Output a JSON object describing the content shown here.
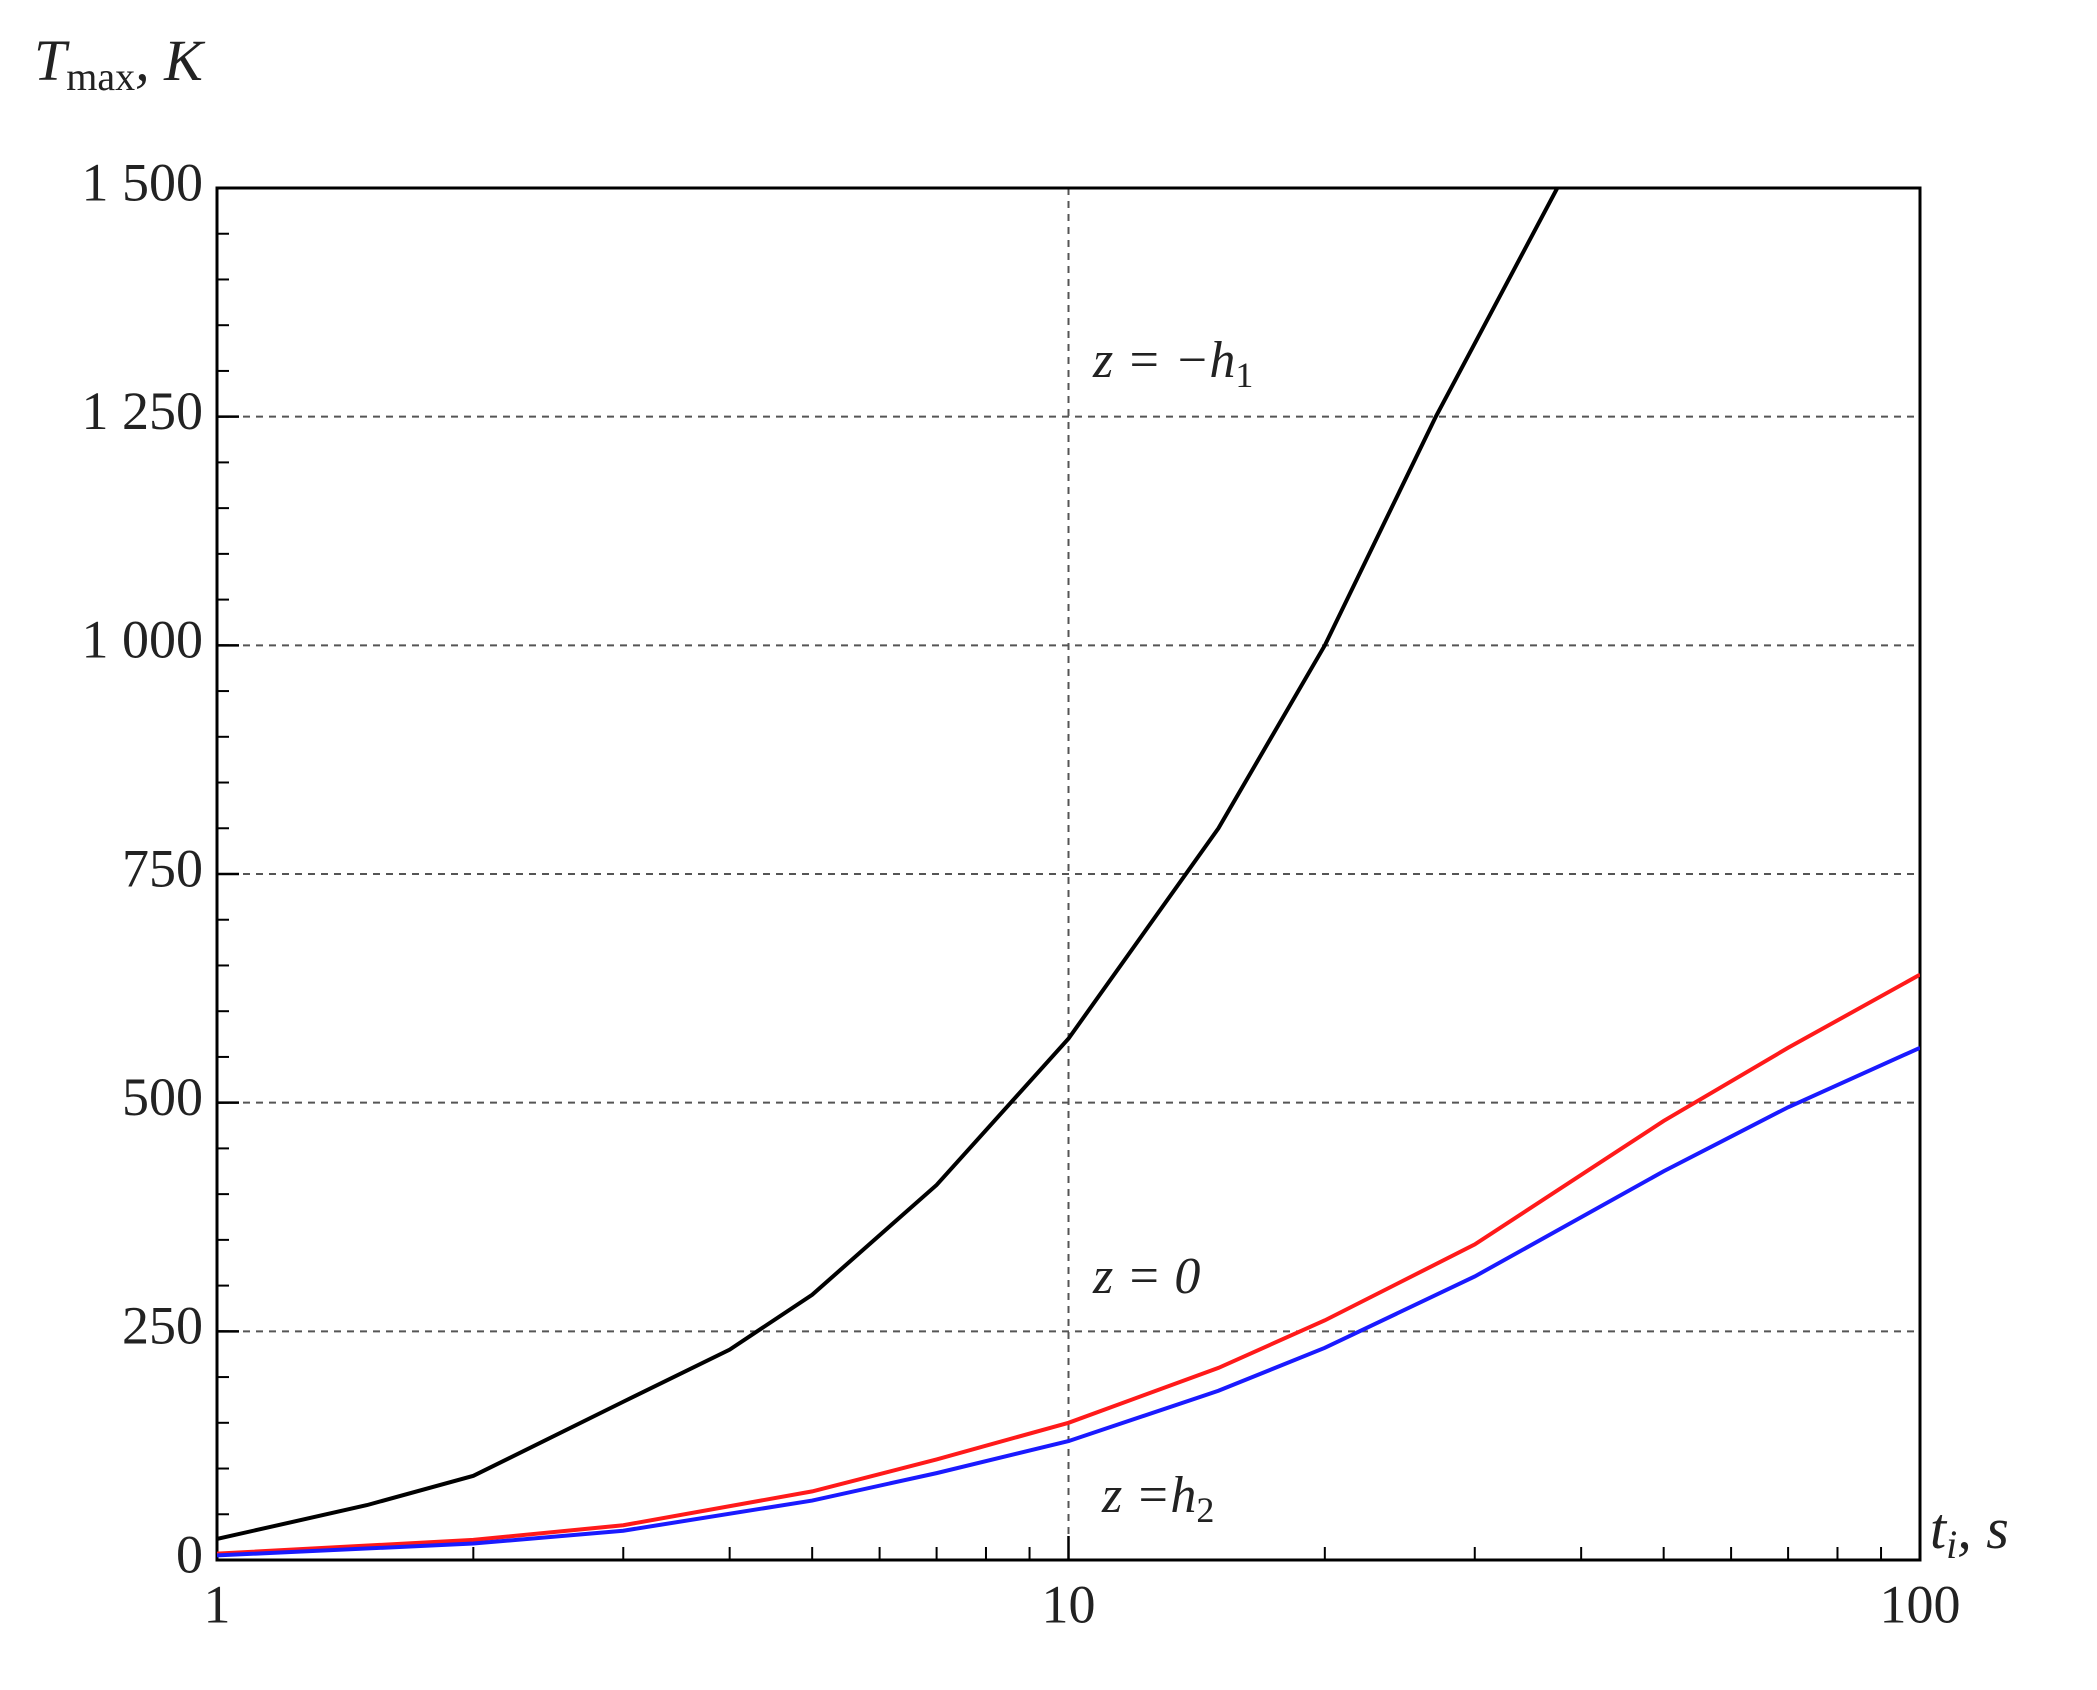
{
  "chart_data": {
    "type": "line",
    "ylabel": {
      "main": "T",
      "sub": "max",
      "unit": ", K"
    },
    "xlabel": {
      "main": "t",
      "sub": "i",
      "unit": ", s"
    },
    "xscale": "log",
    "xlim": [
      1,
      100
    ],
    "xticks": [
      1,
      10,
      100
    ],
    "ylim": [
      0,
      1500
    ],
    "yticks": [
      0,
      250,
      500,
      750,
      {
        "value": 1000,
        "label": "1 000"
      },
      {
        "value": 1250,
        "label": "1 250"
      },
      {
        "value": 1500,
        "label": "1 500"
      }
    ],
    "grid": true,
    "series": [
      {
        "color": "#000000",
        "x": [
          1,
          1.5,
          2,
          3,
          4,
          5,
          7,
          10,
          15,
          20,
          27,
          30,
          37.5
        ],
        "values": [
          23,
          60,
          92,
          173,
          230,
          290,
          410,
          570,
          800,
          1000,
          1250,
          1330,
          1500
        ]
      },
      {
        "color": "#ff1a1a",
        "x": [
          1,
          2,
          3,
          5,
          7,
          10,
          15,
          20,
          30,
          50,
          70,
          100
        ],
        "values": [
          7,
          22,
          38,
          75,
          110,
          150,
          210,
          262,
          345,
          480,
          560,
          640
        ]
      },
      {
        "color": "#1a1aff",
        "x": [
          1,
          2,
          3,
          5,
          7,
          10,
          15,
          20,
          30,
          50,
          70,
          100
        ],
        "values": [
          5,
          18,
          32,
          65,
          95,
          130,
          185,
          232,
          310,
          425,
          495,
          560
        ]
      }
    ],
    "annotations": [
      {
        "text": "z = −h",
        "sub": "1"
      },
      {
        "text": "z = 0"
      },
      {
        "text": "z =h",
        "sub": "2"
      }
    ]
  }
}
